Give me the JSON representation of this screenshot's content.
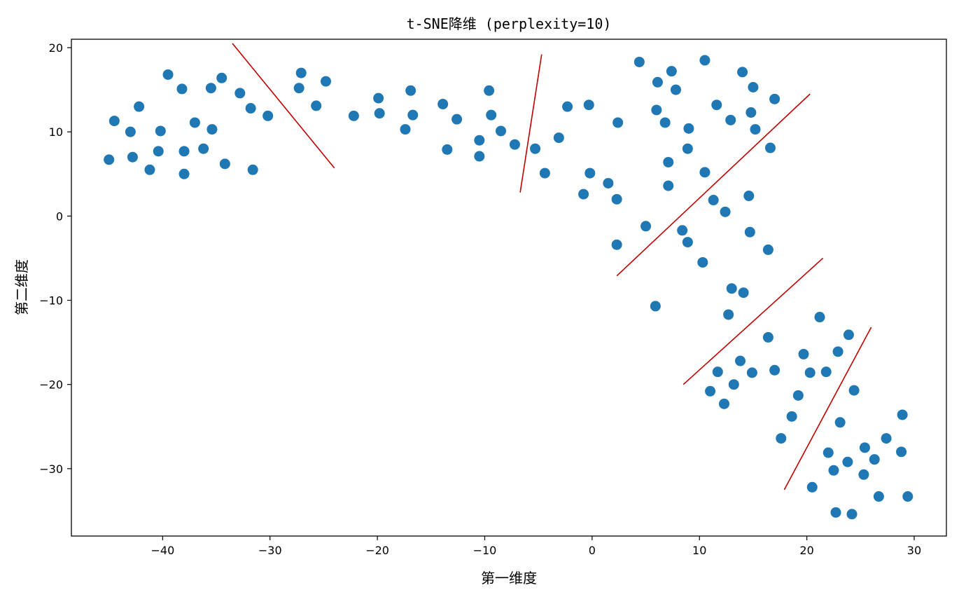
{
  "chart_data": {
    "type": "scatter",
    "title": "t-SNE降维 (perplexity=10)",
    "xlabel": "第一维度",
    "ylabel": "第二维度",
    "xlim": [
      -48.5,
      33.0
    ],
    "ylim": [
      -38.0,
      21.0
    ],
    "xticks": [
      -40,
      -30,
      -20,
      -10,
      0,
      10,
      20,
      30
    ],
    "yticks": [
      20,
      10,
      0,
      -10,
      -20,
      -30
    ],
    "grid": false,
    "legend": "none",
    "colors": {
      "points": "#1f77b4",
      "lines": "#c00000"
    },
    "points": [
      [
        -45,
        6.7
      ],
      [
        -44.5,
        11.3
      ],
      [
        -43,
        10.0
      ],
      [
        -42.8,
        7.0
      ],
      [
        -42.2,
        13.0
      ],
      [
        -41.2,
        5.5
      ],
      [
        -40.4,
        7.7
      ],
      [
        -40.2,
        10.1
      ],
      [
        -39.5,
        16.8
      ],
      [
        -38.2,
        15.1
      ],
      [
        -38.0,
        7.7
      ],
      [
        -38.0,
        5.0
      ],
      [
        -37.0,
        11.1
      ],
      [
        -36.2,
        8.0
      ],
      [
        -35.5,
        15.2
      ],
      [
        -35.4,
        10.3
      ],
      [
        -34.5,
        16.4
      ],
      [
        -34.2,
        6.2
      ],
      [
        -32.8,
        14.6
      ],
      [
        -31.8,
        12.8
      ],
      [
        -31.6,
        5.5
      ],
      [
        -30.2,
        11.9
      ],
      [
        -27.3,
        15.2
      ],
      [
        -27.1,
        17.0
      ],
      [
        -25.7,
        13.1
      ],
      [
        -24.8,
        16.0
      ],
      [
        -22.2,
        11.9
      ],
      [
        -19.9,
        14.0
      ],
      [
        -19.8,
        12.2
      ],
      [
        -17.4,
        10.3
      ],
      [
        -16.9,
        14.9
      ],
      [
        -16.7,
        12.0
      ],
      [
        -13.9,
        13.3
      ],
      [
        -13.5,
        7.9
      ],
      [
        -12.6,
        11.5
      ],
      [
        -10.5,
        9.0
      ],
      [
        -10.5,
        7.1
      ],
      [
        -9.6,
        14.9
      ],
      [
        -9.4,
        12.0
      ],
      [
        -8.5,
        10.1
      ],
      [
        -7.2,
        8.5
      ],
      [
        -5.3,
        8.0
      ],
      [
        -4.4,
        5.1
      ],
      [
        -3.1,
        9.3
      ],
      [
        -2.3,
        13.0
      ],
      [
        -0.8,
        2.6
      ],
      [
        -0.3,
        13.2
      ],
      [
        -0.2,
        5.1
      ],
      [
        1.5,
        3.9
      ],
      [
        2.3,
        2.0
      ],
      [
        2.3,
        -3.4
      ],
      [
        2.4,
        11.1
      ],
      [
        4.4,
        18.3
      ],
      [
        5.0,
        -1.2
      ],
      [
        5.9,
        -10.7
      ],
      [
        6.0,
        12.6
      ],
      [
        6.1,
        15.9
      ],
      [
        6.8,
        11.1
      ],
      [
        7.1,
        6.4
      ],
      [
        7.1,
        3.6
      ],
      [
        7.4,
        17.2
      ],
      [
        7.8,
        15.0
      ],
      [
        8.4,
        -1.7
      ],
      [
        8.9,
        -3.1
      ],
      [
        8.9,
        8.0
      ],
      [
        9.0,
        10.4
      ],
      [
        10.3,
        -5.5
      ],
      [
        10.5,
        18.5
      ],
      [
        10.5,
        5.2
      ],
      [
        11.3,
        1.9
      ],
      [
        11.6,
        13.2
      ],
      [
        12.4,
        0.5
      ],
      [
        12.9,
        11.4
      ],
      [
        14.0,
        17.1
      ],
      [
        14.6,
        2.4
      ],
      [
        14.7,
        -1.9
      ],
      [
        14.8,
        12.3
      ],
      [
        15.0,
        15.3
      ],
      [
        15.2,
        10.3
      ],
      [
        16.4,
        -4.0
      ],
      [
        16.6,
        8.1
      ],
      [
        17.0,
        13.9
      ],
      [
        13.0,
        -8.6
      ],
      [
        14.1,
        -9.1
      ],
      [
        12.7,
        -11.7
      ],
      [
        13.2,
        -20.0
      ],
      [
        13.8,
        -17.2
      ],
      [
        14.9,
        -18.6
      ],
      [
        16.4,
        -14.4
      ],
      [
        17.0,
        -18.3
      ],
      [
        11.7,
        -18.5
      ],
      [
        11.0,
        -20.8
      ],
      [
        12.3,
        -22.3
      ],
      [
        17.6,
        -26.4
      ],
      [
        18.6,
        -23.8
      ],
      [
        19.2,
        -21.3
      ],
      [
        19.7,
        -16.4
      ],
      [
        20.3,
        -18.6
      ],
      [
        21.2,
        -12.0
      ],
      [
        21.8,
        -18.5
      ],
      [
        20.5,
        -32.2
      ],
      [
        22.0,
        -28.1
      ],
      [
        22.5,
        -30.2
      ],
      [
        22.7,
        -35.2
      ],
      [
        22.9,
        -16.1
      ],
      [
        23.1,
        -24.5
      ],
      [
        23.8,
        -29.2
      ],
      [
        23.9,
        -14.1
      ],
      [
        24.2,
        -35.4
      ],
      [
        24.4,
        -20.7
      ],
      [
        25.3,
        -30.7
      ],
      [
        25.4,
        -27.5
      ],
      [
        26.3,
        -28.9
      ],
      [
        26.7,
        -33.3
      ],
      [
        27.4,
        -26.4
      ],
      [
        28.8,
        -28.0
      ],
      [
        28.9,
        -23.6
      ],
      [
        29.4,
        -33.3
      ]
    ],
    "lines": [
      [
        [
          -33.5,
          20.5
        ],
        [
          -24.0,
          5.7
        ]
      ],
      [
        [
          -6.7,
          2.8
        ],
        [
          -4.7,
          19.2
        ]
      ],
      [
        [
          2.3,
          -7.1
        ],
        [
          20.3,
          14.5
        ]
      ],
      [
        [
          8.5,
          -20.0
        ],
        [
          21.5,
          -5.0
        ]
      ],
      [
        [
          17.9,
          -32.5
        ],
        [
          26.0,
          -13.2
        ]
      ]
    ]
  }
}
